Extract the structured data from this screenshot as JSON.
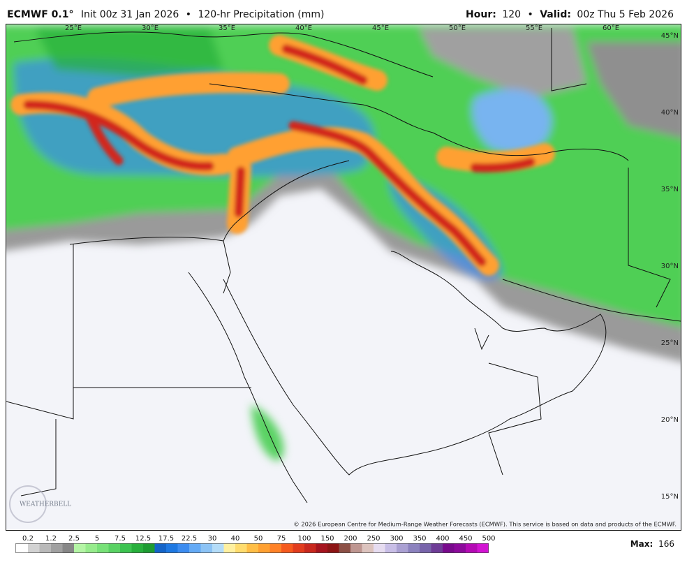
{
  "header": {
    "model": "ECMWF 0.1°",
    "init": "Init 00z 31 Jan 2026",
    "separator": "•",
    "product": "120-hr Precipitation (mm)",
    "hour_label": "Hour:",
    "hour": "120",
    "valid_label": "Valid:",
    "valid": "00z Thu 5 Feb 2026"
  },
  "map": {
    "lon_labels": [
      "25°E",
      "30°E",
      "35°E",
      "40°E",
      "45°E",
      "50°E",
      "55°E",
      "60°E"
    ],
    "lat_labels": [
      "45°N",
      "40°N",
      "35°N",
      "30°N",
      "25°N",
      "20°N",
      "15°N"
    ],
    "logo": "WEATHERBELL",
    "copyright": "© 2026 European Centre for Medium-Range Weather Forecasts (ECMWF). This service is based on data and products of the ECMWF."
  },
  "colorbar": {
    "levels": [
      0.2,
      1.2,
      2.5,
      5,
      7.5,
      12.5,
      17.5,
      22.5,
      30,
      40,
      50,
      75,
      100,
      150,
      200,
      250,
      300,
      350,
      400,
      450,
      500
    ],
    "colors": [
      "#ffffff",
      "#d2d2d2",
      "#b9b9b9",
      "#a0a0a0",
      "#878787",
      "#b4f5a5",
      "#96eb8c",
      "#78e178",
      "#5ad264",
      "#3cc350",
      "#28af3c",
      "#1e9b32",
      "#1464c8",
      "#1e78e1",
      "#3c8cf0",
      "#64aaf5",
      "#8cc3f5",
      "#b4dcf8",
      "#fff0a0",
      "#ffdc6e",
      "#ffbe46",
      "#ffa032",
      "#ff8228",
      "#f55a1e",
      "#e13c1e",
      "#c8281e",
      "#a5141e",
      "#8c1414",
      "#8c5046",
      "#be9691",
      "#dcc3be",
      "#e6dcf0",
      "#c8bee6",
      "#aaa0d2",
      "#8c82be",
      "#7864aa",
      "#6e3c96",
      "#780a8c",
      "#8c0a9b",
      "#b40ab4",
      "#d214d2"
    ]
  },
  "max": {
    "label": "Max:",
    "value": 166
  }
}
